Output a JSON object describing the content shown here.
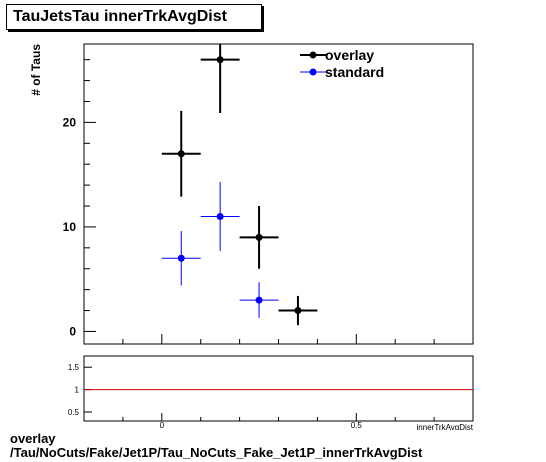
{
  "title": "TauJetsTau innerTrkAvgDist",
  "caption": {
    "line1": "overlay",
    "line2": "/Tau/NoCuts/Fake/Jet1P/Tau_NoCuts_Fake_Jet1P_innerTrkAvgDist"
  },
  "chart_data": [
    {
      "type": "scatter",
      "ylabel": "# of Taus",
      "xlim": [
        -0.2,
        0.8
      ],
      "ylim": [
        -1.2,
        27.5
      ],
      "yticks": [
        0,
        10,
        20
      ],
      "series": [
        {
          "name": "overlay",
          "color": "#000000",
          "points": [
            {
              "x": 0.05,
              "y": 17,
              "xerr": 0.05,
              "yerr": 4.1
            },
            {
              "x": 0.15,
              "y": 26,
              "xerr": 0.05,
              "yerr": 5.1
            },
            {
              "x": 0.25,
              "y": 9,
              "xerr": 0.05,
              "yerr": 3.0
            },
            {
              "x": 0.35,
              "y": 2,
              "xerr": 0.05,
              "yerr": 1.4
            }
          ]
        },
        {
          "name": "standard",
          "color": "#0000ff",
          "points": [
            {
              "x": 0.05,
              "y": 7,
              "xerr": 0.05,
              "yerr": 2.6
            },
            {
              "x": 0.15,
              "y": 11,
              "xerr": 0.05,
              "yerr": 3.3
            },
            {
              "x": 0.25,
              "y": 3,
              "xerr": 0.05,
              "yerr": 1.7
            }
          ]
        }
      ],
      "legend": "top-right"
    },
    {
      "type": "line",
      "xlabel": "innerTrkAvgDist",
      "xlim": [
        -0.2,
        0.8
      ],
      "ylim": [
        0.3,
        1.75
      ],
      "yticks": [
        0.5,
        1,
        1.5
      ],
      "ytick_labels": [
        "0.5",
        "1",
        "1.5"
      ],
      "xticks": [
        0,
        0.5
      ],
      "xtick_labels": [
        "0",
        "0.5"
      ],
      "reference_line": {
        "y": 1,
        "color": "#cc0000"
      }
    }
  ]
}
